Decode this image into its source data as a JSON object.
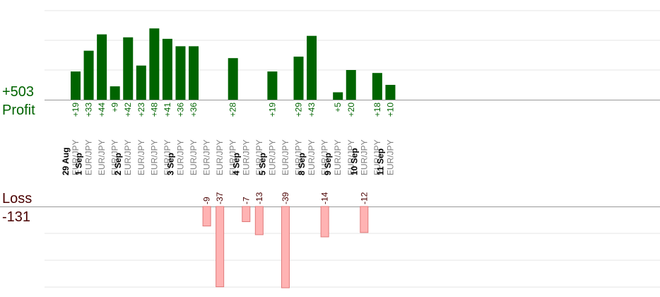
{
  "summary": {
    "profit_total": "+503",
    "profit_label": "Profit",
    "loss_label": "Loss",
    "loss_total": "-131"
  },
  "colors": {
    "profit_bar": "#006400",
    "loss_bar": "#ffb3b3",
    "loss_bar_border": "#e07a7a",
    "profit_text": "#006400",
    "loss_text": "#4a0000",
    "grid": "#e6e6e6",
    "axis": "#999999",
    "symbol_text": "#808080",
    "date_text": "#000000"
  },
  "chart_data": {
    "type": "bar",
    "profit_ylim": [
      0,
      35
    ],
    "loss_ylim": [
      0,
      30
    ],
    "columns": [
      {
        "date": "29 Aug",
        "symbol": "EUR/JPY",
        "profit": 19,
        "profit_label": "+19",
        "loss": null,
        "loss_label": ""
      },
      {
        "date": "1 Sep",
        "symbol": "EUR/JPY",
        "profit": 33,
        "profit_label": "+33",
        "loss": null,
        "loss_label": ""
      },
      {
        "date": "",
        "symbol": "EUR/JPY",
        "profit": 44,
        "profit_label": "+44",
        "loss": null,
        "loss_label": ""
      },
      {
        "date": "",
        "symbol": "EUR/JPY",
        "profit": 9,
        "profit_label": "+9",
        "loss": null,
        "loss_label": ""
      },
      {
        "date": "2 Sep",
        "symbol": "EUR/JPY",
        "profit": 42,
        "profit_label": "+42",
        "loss": null,
        "loss_label": ""
      },
      {
        "date": "",
        "symbol": "EUR/JPY",
        "profit": 23,
        "profit_label": "+23",
        "loss": null,
        "loss_label": ""
      },
      {
        "date": "",
        "symbol": "EUR/JPY",
        "profit": 48,
        "profit_label": "+48",
        "loss": null,
        "loss_label": ""
      },
      {
        "date": "",
        "symbol": "EUR/JPY",
        "profit": 41,
        "profit_label": "+41",
        "loss": null,
        "loss_label": ""
      },
      {
        "date": "3 Sep",
        "symbol": "EUR/JPY",
        "profit": 36,
        "profit_label": "+36",
        "loss": null,
        "loss_label": ""
      },
      {
        "date": "",
        "symbol": "EUR/JPY",
        "profit": 36,
        "profit_label": "+36",
        "loss": null,
        "loss_label": ""
      },
      {
        "date": "",
        "symbol": "EUR/JPY",
        "profit": null,
        "profit_label": "",
        "loss": 9,
        "loss_label": "-9"
      },
      {
        "date": "",
        "symbol": "EUR/JPY",
        "profit": null,
        "profit_label": "",
        "loss": 37,
        "loss_label": "-37"
      },
      {
        "date": "",
        "symbol": "EUR/JPY",
        "profit": 28,
        "profit_label": "+28",
        "loss": null,
        "loss_label": ""
      },
      {
        "date": "4 Sep",
        "symbol": "EUR/JPY",
        "profit": null,
        "profit_label": "",
        "loss": 7,
        "loss_label": "-7"
      },
      {
        "date": "",
        "symbol": "EUR/JPY",
        "profit": null,
        "profit_label": "",
        "loss": 13,
        "loss_label": "-13"
      },
      {
        "date": "5 Sep",
        "symbol": "EUR/JPY",
        "profit": 19,
        "profit_label": "+19",
        "loss": null,
        "loss_label": ""
      },
      {
        "date": "",
        "symbol": "EUR/JPY",
        "profit": null,
        "profit_label": "",
        "loss": 39,
        "loss_label": "-39"
      },
      {
        "date": "",
        "symbol": "EUR/JPY",
        "profit": 29,
        "profit_label": "+29",
        "loss": null,
        "loss_label": ""
      },
      {
        "date": "8 Sep",
        "symbol": "EUR/JPY",
        "profit": 43,
        "profit_label": "+43",
        "loss": null,
        "loss_label": ""
      },
      {
        "date": "",
        "symbol": "EUR/JPY",
        "profit": null,
        "profit_label": "",
        "loss": 14,
        "loss_label": "-14"
      },
      {
        "date": "9 Sep",
        "symbol": "EUR/JPY",
        "profit": 5,
        "profit_label": "+5",
        "loss": null,
        "loss_label": ""
      },
      {
        "date": "",
        "symbol": "EUR/JPY",
        "profit": 20,
        "profit_label": "+20",
        "loss": null,
        "loss_label": ""
      },
      {
        "date": "10 Sep",
        "symbol": "EUR/JPY",
        "profit": null,
        "profit_label": "",
        "loss": 12,
        "loss_label": "-12"
      },
      {
        "date": "",
        "symbol": "EUR/JPY",
        "profit": 18,
        "profit_label": "+18",
        "loss": null,
        "loss_label": ""
      },
      {
        "date": "11 Sep",
        "symbol": "EUR/JPY",
        "profit": 10,
        "profit_label": "+10",
        "loss": null,
        "loss_label": ""
      }
    ]
  }
}
